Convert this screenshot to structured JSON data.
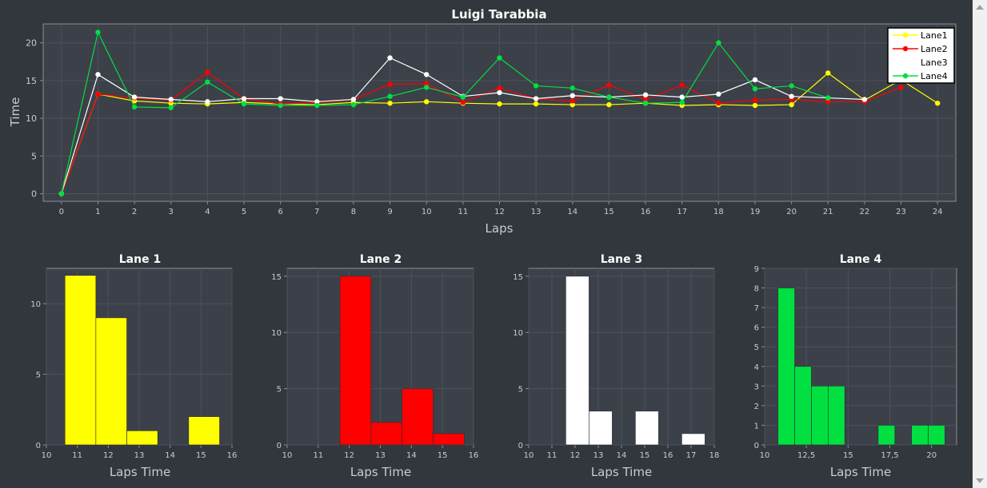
{
  "chart_data": [
    {
      "type": "line",
      "title": "Luigi Tarabbia",
      "xlabel": "Laps",
      "ylabel": "Time",
      "xlim": [
        -0.5,
        24.5
      ],
      "ylim": [
        -1,
        22.5
      ],
      "x_ticks": [
        0,
        1,
        2,
        3,
        4,
        5,
        6,
        7,
        8,
        9,
        10,
        11,
        12,
        13,
        14,
        15,
        16,
        17,
        18,
        19,
        20,
        21,
        22,
        23,
        24
      ],
      "y_ticks": [
        0,
        5,
        10,
        15,
        20
      ],
      "grid": true,
      "legend": "top-right",
      "series": [
        {
          "name": "Lane1",
          "color": "#ffff00",
          "x": [
            0,
            1,
            2,
            3,
            4,
            5,
            6,
            7,
            8,
            9,
            10,
            11,
            12,
            13,
            14,
            15,
            16,
            17,
            18,
            19,
            20,
            21,
            22,
            23,
            24
          ],
          "y": [
            0,
            13.2,
            12.3,
            12.0,
            11.9,
            12.1,
            11.9,
            11.8,
            12.1,
            12.0,
            12.2,
            12.0,
            11.9,
            11.9,
            11.8,
            11.8,
            12.0,
            11.7,
            11.8,
            11.7,
            11.8,
            16.0,
            12.4,
            15.1,
            12.0
          ]
        },
        {
          "name": "Lane2",
          "color": "#ff0000",
          "x": [
            0,
            1,
            2,
            3,
            4,
            5,
            6,
            7,
            8,
            9,
            10,
            11,
            12,
            13,
            14,
            15,
            16,
            17,
            18,
            19,
            20,
            21,
            22,
            23
          ],
          "y": [
            0,
            13.2,
            12.7,
            12.4,
            16.1,
            12.6,
            11.9,
            12.1,
            12.5,
            14.5,
            14.6,
            12.1,
            14.0,
            12.6,
            12.3,
            14.4,
            12.5,
            14.4,
            12.0,
            12.4,
            12.5,
            12.2,
            12.2,
            14.1
          ]
        },
        {
          "name": "Lane3",
          "color": "#ffffff",
          "x": [
            0,
            1,
            2,
            3,
            4,
            5,
            6,
            7,
            8,
            9,
            10,
            11,
            12,
            13,
            14,
            15,
            16,
            17,
            18,
            19,
            20,
            21,
            22
          ],
          "y": [
            0,
            15.8,
            12.8,
            12.5,
            12.2,
            12.6,
            12.6,
            12.2,
            12.5,
            18.0,
            15.8,
            12.9,
            13.4,
            12.6,
            13.0,
            12.8,
            13.1,
            12.8,
            13.2,
            15.1,
            12.9,
            12.7,
            12.5
          ]
        },
        {
          "name": "Lane4",
          "color": "#00e040",
          "x": [
            0,
            1,
            2,
            3,
            4,
            5,
            6,
            7,
            8,
            9,
            10,
            11,
            12,
            13,
            14,
            15,
            16,
            17,
            18,
            19,
            20,
            21
          ],
          "y": [
            0,
            21.4,
            11.5,
            11.4,
            14.8,
            11.9,
            11.7,
            11.7,
            11.8,
            12.9,
            14.1,
            12.8,
            18.0,
            14.3,
            14.0,
            12.8,
            12.0,
            12.1,
            20.0,
            13.9,
            14.3,
            12.7
          ]
        }
      ]
    },
    {
      "type": "bar",
      "title": "Lane 1",
      "xlabel": "Laps Time",
      "ylabel": "",
      "color": "#ffff00",
      "xlim": [
        10,
        16
      ],
      "ylim": [
        0,
        12.5
      ],
      "x_ticks": [
        10,
        11,
        12,
        13,
        14,
        15,
        16
      ],
      "y_ticks": [
        0,
        5,
        10
      ],
      "bins": [
        {
          "from": 10.6,
          "to": 11.6,
          "count": 12
        },
        {
          "from": 11.6,
          "to": 12.6,
          "count": 9
        },
        {
          "from": 12.6,
          "to": 13.6,
          "count": 1
        },
        {
          "from": 14.6,
          "to": 15.6,
          "count": 2
        }
      ]
    },
    {
      "type": "bar",
      "title": "Lane 2",
      "xlabel": "Laps Time",
      "ylabel": "",
      "color": "#ff0000",
      "xlim": [
        10,
        16
      ],
      "ylim": [
        0,
        15.7
      ],
      "x_ticks": [
        10,
        11,
        12,
        13,
        14,
        15,
        16
      ],
      "y_ticks": [
        0,
        5,
        10,
        15
      ],
      "bins": [
        {
          "from": 11.7,
          "to": 12.7,
          "count": 15
        },
        {
          "from": 12.7,
          "to": 13.7,
          "count": 2
        },
        {
          "from": 13.7,
          "to": 14.7,
          "count": 5
        },
        {
          "from": 14.7,
          "to": 15.7,
          "count": 1
        }
      ]
    },
    {
      "type": "bar",
      "title": "Lane 3",
      "xlabel": "Laps Time",
      "ylabel": "",
      "color": "#ffffff",
      "xlim": [
        10,
        18
      ],
      "ylim": [
        0,
        15.7
      ],
      "x_ticks": [
        10,
        11,
        12,
        13,
        14,
        15,
        16,
        17,
        18
      ],
      "y_ticks": [
        0,
        5,
        10,
        15
      ],
      "bins": [
        {
          "from": 11.6,
          "to": 12.6,
          "count": 15
        },
        {
          "from": 12.6,
          "to": 13.6,
          "count": 3
        },
        {
          "from": 14.6,
          "to": 15.6,
          "count": 3
        },
        {
          "from": 16.6,
          "to": 17.6,
          "count": 1
        }
      ]
    },
    {
      "type": "bar",
      "title": "Lane 4",
      "xlabel": "Laps Time",
      "ylabel": "",
      "color": "#00e040",
      "xlim": [
        10,
        21.5
      ],
      "ylim": [
        0,
        9
      ],
      "x_ticks": [
        10,
        12.5,
        15,
        17.5,
        20
      ],
      "x_tick_labels": [
        "10",
        "12,5",
        "15",
        "17,5",
        "20"
      ],
      "y_ticks": [
        0,
        1,
        2,
        3,
        4,
        5,
        6,
        7,
        8,
        9
      ],
      "bins": [
        {
          "from": 10.8,
          "to": 11.8,
          "count": 8
        },
        {
          "from": 11.8,
          "to": 12.8,
          "count": 4
        },
        {
          "from": 12.8,
          "to": 13.8,
          "count": 3
        },
        {
          "from": 13.8,
          "to": 14.8,
          "count": 3
        },
        {
          "from": 16.8,
          "to": 17.8,
          "count": 1
        },
        {
          "from": 18.8,
          "to": 19.8,
          "count": 1
        },
        {
          "from": 19.8,
          "to": 20.8,
          "count": 1
        }
      ]
    }
  ],
  "theme": {
    "background": "#32363d",
    "plot_background": "#3c4049",
    "grid": "#4c515b",
    "axis": "#8a8f98",
    "text": "#c8ccd2",
    "title": "#ffffff",
    "bar_border": "#2a2d33"
  }
}
